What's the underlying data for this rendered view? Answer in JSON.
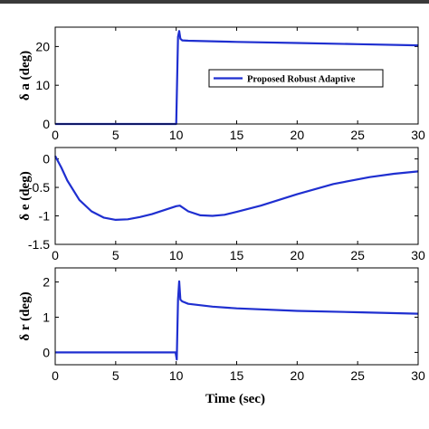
{
  "colors": {
    "series": "#1f2fd0",
    "axis": "#000000"
  },
  "legend": {
    "label": "Proposed Robust Adaptive",
    "placement": "inside-upper-right"
  },
  "xlabel": "Time (sec)",
  "chart_data": [
    {
      "type": "line",
      "ylabel": "δ a (deg)",
      "xlim": [
        0,
        30
      ],
      "ylim": [
        0,
        25
      ],
      "xticks": [
        "0",
        "5",
        "10",
        "15",
        "20",
        "25",
        "30"
      ],
      "yticks": [
        "0",
        "10",
        "20"
      ],
      "series": [
        {
          "name": "Proposed Robust Adaptive",
          "x": [
            0,
            10.0,
            10.15,
            10.25,
            10.35,
            10.5,
            11,
            15,
            20,
            25,
            30
          ],
          "y": [
            0,
            0,
            22.5,
            24.0,
            22.0,
            21.6,
            21.5,
            21.2,
            20.9,
            20.6,
            20.3
          ]
        }
      ]
    },
    {
      "type": "line",
      "ylabel": "δ e (deg)",
      "xlim": [
        0,
        30
      ],
      "ylim": [
        -1.5,
        0.2
      ],
      "xticks": [
        "0",
        "5",
        "10",
        "15",
        "20",
        "25",
        "30"
      ],
      "yticks": [
        "0",
        "-0.5",
        "-1",
        "-1.5"
      ],
      "series": [
        {
          "name": "Proposed Robust Adaptive",
          "x": [
            0,
            0.5,
            1,
            2,
            3,
            4,
            5,
            6,
            7,
            8,
            9,
            10,
            10.3,
            11,
            12,
            13,
            14,
            15,
            17,
            20,
            23,
            26,
            28,
            30
          ],
          "y": [
            0.05,
            -0.15,
            -0.38,
            -0.72,
            -0.92,
            -1.03,
            -1.07,
            -1.06,
            -1.02,
            -0.97,
            -0.9,
            -0.83,
            -0.82,
            -0.92,
            -0.99,
            -1.0,
            -0.98,
            -0.93,
            -0.82,
            -0.62,
            -0.44,
            -0.32,
            -0.26,
            -0.22
          ]
        }
      ]
    },
    {
      "type": "line",
      "ylabel": "δ r (deg)",
      "xlim": [
        0,
        30
      ],
      "ylim": [
        -0.35,
        2.4
      ],
      "xticks": [
        "0",
        "5",
        "10",
        "15",
        "20",
        "25",
        "30"
      ],
      "yticks": [
        "0",
        "1",
        "2"
      ],
      "series": [
        {
          "name": "Proposed Robust Adaptive",
          "x": [
            0,
            9.95,
            10.05,
            10.15,
            10.25,
            10.35,
            10.5,
            11,
            13,
            15,
            20,
            25,
            30
          ],
          "y": [
            0,
            0,
            -0.2,
            1.5,
            2.02,
            1.5,
            1.45,
            1.38,
            1.3,
            1.25,
            1.18,
            1.14,
            1.1
          ]
        }
      ]
    }
  ]
}
